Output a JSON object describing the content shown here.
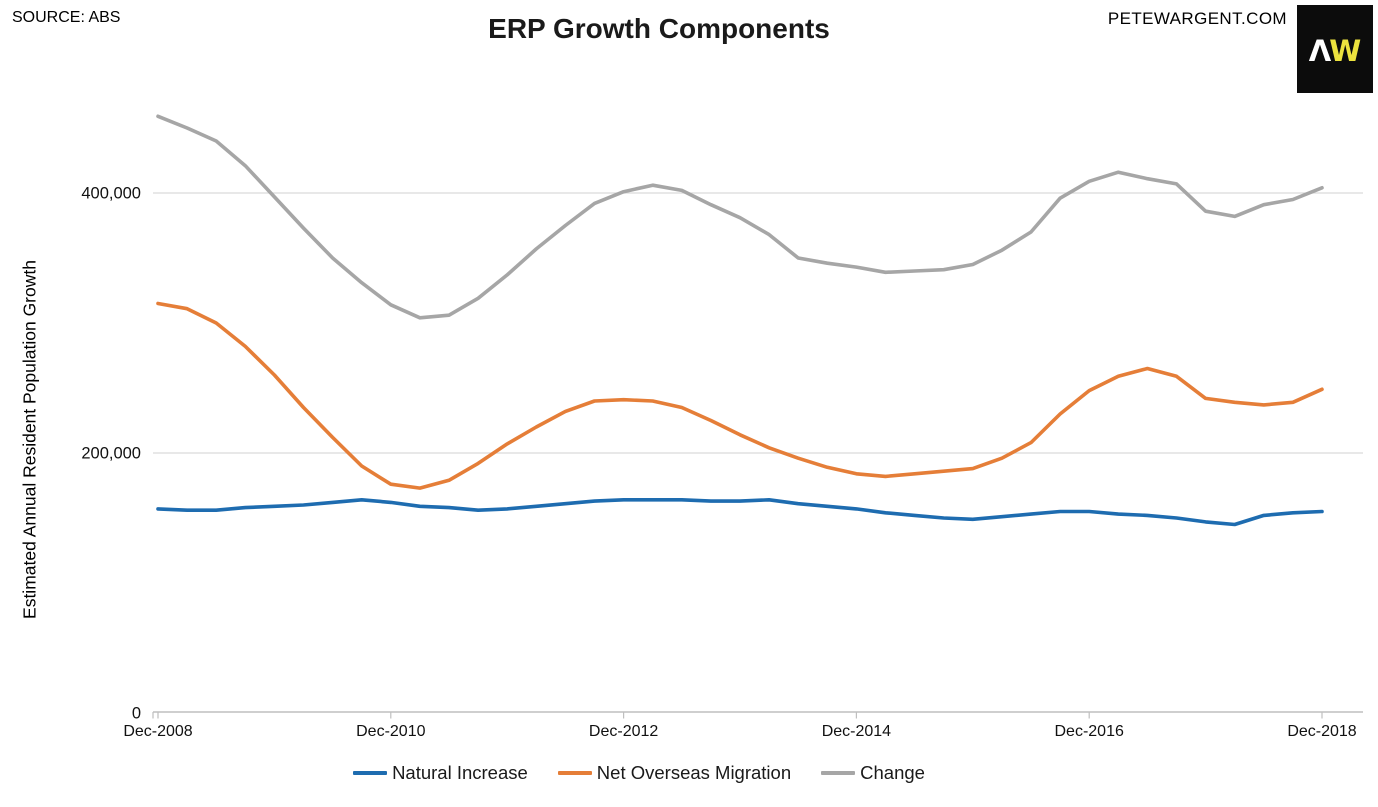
{
  "header": {
    "source": "SOURCE: ABS",
    "title": "ERP Growth Components",
    "site": "PETEWARGENT.COM",
    "logo_letter_1": "Λ",
    "logo_letter_2": "W",
    "logo_bg": "#0c0c0c",
    "logo_letter_1_color": "#ffffff",
    "logo_letter_2_color": "#ece23e"
  },
  "chart_data": {
    "type": "line",
    "title": "ERP Growth Components",
    "xlabel": "",
    "ylabel": "Estimated Annual Resident Population Growth",
    "ylim": [
      0,
      483000
    ],
    "grid": true,
    "grid_color": "#d9d9d9",
    "axis_color": "#bfbfbf",
    "legend_position": "bottom",
    "y_ticks": [
      {
        "value": 0,
        "label": "0"
      },
      {
        "value": 200000,
        "label": "200,000"
      },
      {
        "value": 400000,
        "label": "400,000"
      }
    ],
    "x_tick_every": 8,
    "x_ticks": [
      "Dec-2008",
      "Dec-2010",
      "Dec-2012",
      "Dec-2014",
      "Dec-2016",
      "Dec-2018"
    ],
    "categories": [
      "Dec-2008",
      "Mar-2009",
      "Jun-2009",
      "Sep-2009",
      "Dec-2009",
      "Mar-2010",
      "Jun-2010",
      "Sep-2010",
      "Dec-2010",
      "Mar-2011",
      "Jun-2011",
      "Sep-2011",
      "Dec-2011",
      "Mar-2012",
      "Jun-2012",
      "Sep-2012",
      "Dec-2012",
      "Mar-2013",
      "Jun-2013",
      "Sep-2013",
      "Dec-2013",
      "Mar-2014",
      "Jun-2014",
      "Sep-2014",
      "Dec-2014",
      "Mar-2015",
      "Jun-2015",
      "Sep-2015",
      "Dec-2015",
      "Mar-2016",
      "Jun-2016",
      "Sep-2016",
      "Dec-2016",
      "Mar-2017",
      "Jun-2017",
      "Sep-2017",
      "Dec-2017",
      "Mar-2018",
      "Jun-2018",
      "Sep-2018",
      "Dec-2018"
    ],
    "series": [
      {
        "name": "Natural Increase",
        "color": "#1e6cb0",
        "values": [
          157000,
          156000,
          156000,
          158000,
          159000,
          160000,
          162000,
          164000,
          162000,
          159000,
          158000,
          156000,
          157000,
          159000,
          161000,
          163000,
          164000,
          164000,
          164000,
          163000,
          163000,
          164000,
          161000,
          159000,
          157000,
          154000,
          152000,
          150000,
          149000,
          151000,
          153000,
          155000,
          155000,
          153000,
          152000,
          150000,
          147000,
          145000,
          152000,
          154000,
          155000
        ]
      },
      {
        "name": "Net Overseas Migration",
        "color": "#e57e38",
        "values": [
          315000,
          311000,
          300000,
          282000,
          260000,
          235000,
          212000,
          190000,
          176000,
          173000,
          179000,
          192000,
          207000,
          220000,
          232000,
          240000,
          241000,
          240000,
          235000,
          225000,
          214000,
          204000,
          196000,
          189000,
          184000,
          182000,
          184000,
          186000,
          188000,
          196000,
          208000,
          230000,
          248000,
          259000,
          265000,
          259000,
          242000,
          239000,
          237000,
          239000,
          249000
        ]
      },
      {
        "name": "Change",
        "color": "#a6a6a6",
        "values": [
          459000,
          450000,
          440000,
          421000,
          397000,
          373000,
          350000,
          331000,
          314000,
          304000,
          306000,
          319000,
          337000,
          357000,
          375000,
          392000,
          401000,
          406000,
          402000,
          391000,
          381000,
          368000,
          350000,
          346000,
          343000,
          339000,
          340000,
          341000,
          345000,
          356000,
          370000,
          396000,
          409000,
          416000,
          411000,
          407000,
          386000,
          382000,
          391000,
          395000,
          404000
        ]
      }
    ]
  }
}
